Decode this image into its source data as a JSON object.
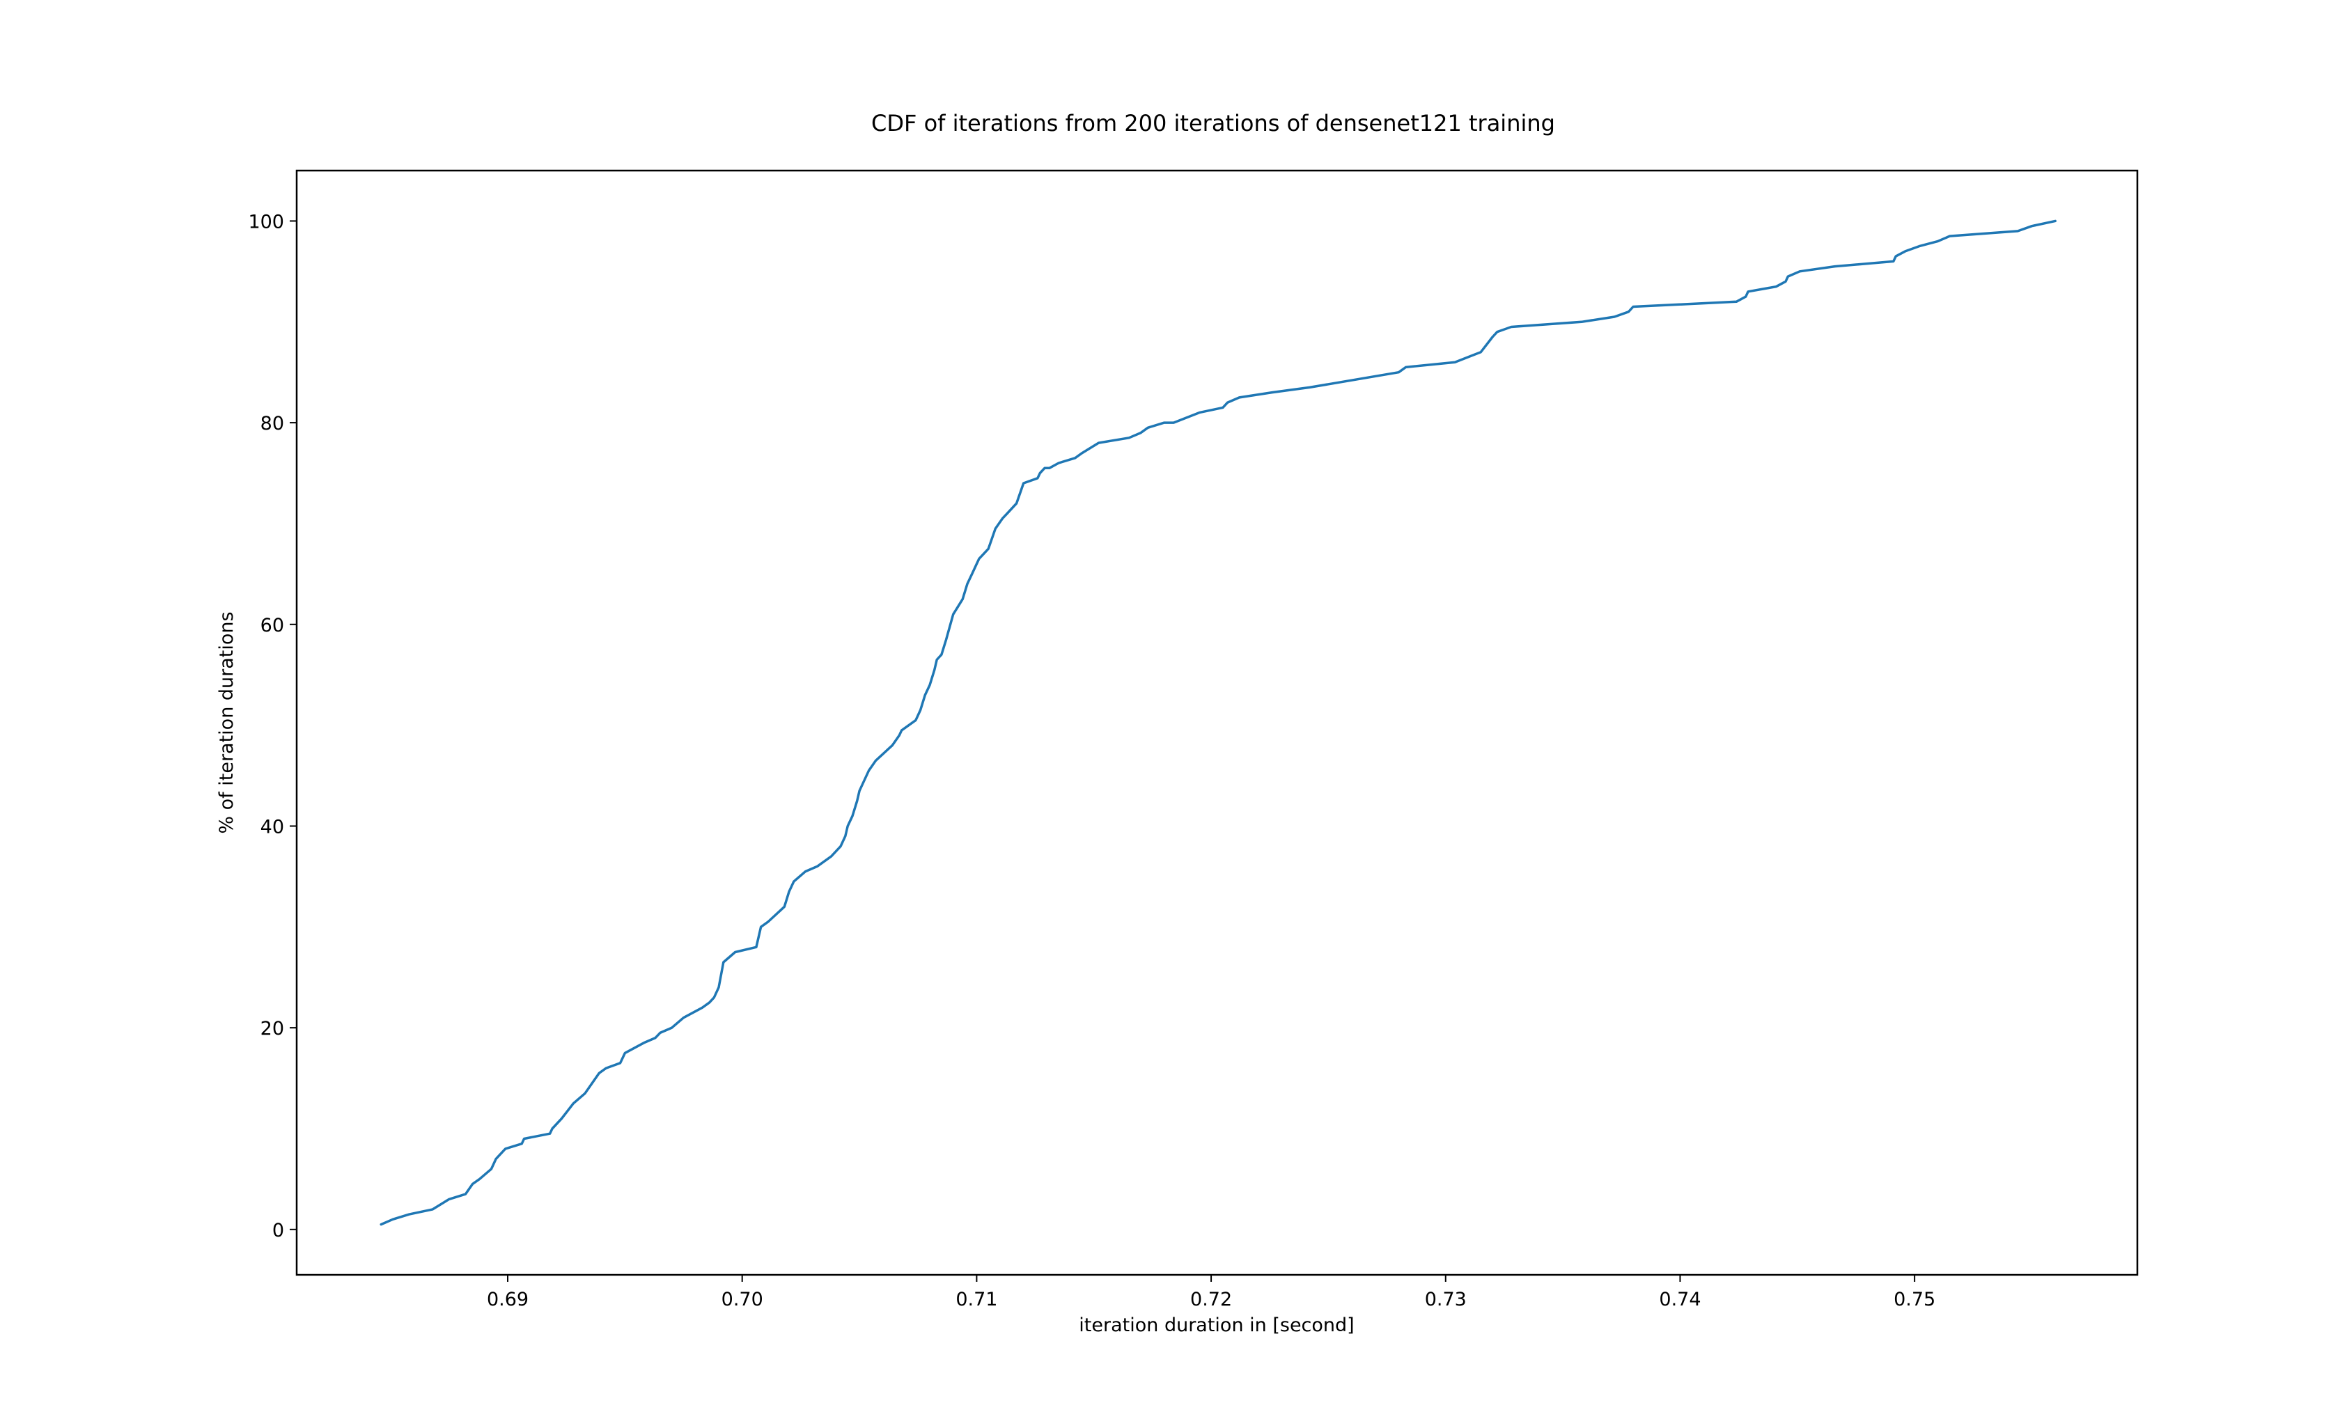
{
  "chart_data": {
    "type": "line",
    "title": "CDF of iterations from 200 iterations of densenet121 training",
    "xlabel": "iteration duration in [second]",
    "ylabel": "% of iteration durations",
    "xlim": [
      0.681,
      0.7595
    ],
    "ylim": [
      -4.5,
      105
    ],
    "xticks": [
      0.69,
      0.7,
      0.71,
      0.72,
      0.73,
      0.74,
      0.75
    ],
    "xtick_labels": [
      "0.69",
      "0.70",
      "0.71",
      "0.72",
      "0.73",
      "0.74",
      "0.75"
    ],
    "yticks": [
      0,
      20,
      40,
      60,
      80,
      100
    ],
    "ytick_labels": [
      "0",
      "20",
      "40",
      "60",
      "80",
      "100"
    ],
    "grid": false,
    "line_color": "#1f77b4",
    "series": [
      {
        "x": [
          0.6846,
          0.6851,
          0.6858,
          0.6868,
          0.6875,
          0.6882,
          0.6885,
          0.6888,
          0.6893,
          0.6895,
          0.6899,
          0.6906,
          0.6907,
          0.6918,
          0.6919,
          0.6923,
          0.6928,
          0.6933,
          0.6939,
          0.6942,
          0.6948,
          0.695,
          0.6958,
          0.6963,
          0.6965,
          0.697,
          0.6975,
          0.6983,
          0.6986,
          0.6988,
          0.699,
          0.6992,
          0.6997,
          0.7006,
          0.7008,
          0.7011,
          0.7018,
          0.702,
          0.7022,
          0.7027,
          0.7032,
          0.7038,
          0.7042,
          0.7044,
          0.7045,
          0.7047,
          0.7049,
          0.705,
          0.7054,
          0.7057,
          0.7064,
          0.7067,
          0.7068,
          0.7074,
          0.7076,
          0.7078,
          0.708,
          0.7082,
          0.7083,
          0.7085,
          0.7087,
          0.709,
          0.7094,
          0.7096,
          0.7098,
          0.71,
          0.7101,
          0.7103,
          0.7105,
          0.7108,
          0.7111,
          0.7113,
          0.7117,
          0.712,
          0.7126,
          0.7127,
          0.7129,
          0.7131,
          0.7135,
          0.7142,
          0.7145,
          0.7152,
          0.7165,
          0.717,
          0.7173,
          0.718,
          0.7184,
          0.7195,
          0.7205,
          0.7207,
          0.7212,
          0.7226,
          0.7242,
          0.728,
          0.7283,
          0.7304,
          0.7315,
          0.732,
          0.7322,
          0.7328,
          0.7358,
          0.7372,
          0.7378,
          0.738,
          0.7424,
          0.7428,
          0.7429,
          0.7441,
          0.7445,
          0.7446,
          0.7451,
          0.7466,
          0.7491,
          0.7492,
          0.7496,
          0.7502,
          0.751,
          0.7515,
          0.7544,
          0.755,
          0.756
        ],
        "y": [
          0.5,
          1.0,
          1.5,
          2.0,
          3.0,
          3.5,
          4.5,
          5.0,
          6.0,
          7.0,
          8.0,
          8.5,
          9.0,
          9.5,
          10.0,
          11.0,
          12.5,
          13.5,
          15.5,
          16.0,
          16.5,
          17.5,
          18.5,
          19.0,
          19.5,
          20.0,
          21.0,
          22.0,
          22.5,
          23.0,
          24.0,
          26.5,
          27.5,
          28.0,
          30.0,
          30.5,
          32.0,
          33.5,
          34.5,
          35.5,
          36.0,
          37.0,
          38.0,
          39.0,
          40.0,
          41.0,
          42.5,
          43.5,
          45.5,
          46.5,
          48.0,
          49.0,
          49.5,
          50.5,
          51.5,
          53.0,
          54.0,
          55.5,
          56.5,
          57.0,
          58.5,
          61.0,
          62.5,
          64.0,
          65.0,
          66.0,
          66.5,
          67.0,
          67.5,
          69.5,
          70.5,
          71.0,
          72.0,
          74.0,
          74.5,
          75.0,
          75.5,
          75.5,
          76.0,
          76.5,
          77.0,
          78.0,
          78.5,
          79.0,
          79.5,
          80.0,
          80.0,
          81.0,
          81.5,
          82.0,
          82.5,
          83.0,
          83.5,
          85.0,
          85.5,
          86.0,
          87.0,
          88.5,
          89.0,
          89.5,
          90.0,
          90.5,
          91.0,
          91.5,
          92.0,
          92.5,
          93.0,
          93.5,
          94.0,
          94.5,
          95.0,
          95.5,
          96.0,
          96.5,
          97.0,
          97.5,
          98.0,
          98.5,
          99.0,
          99.5,
          100.0
        ]
      }
    ]
  }
}
